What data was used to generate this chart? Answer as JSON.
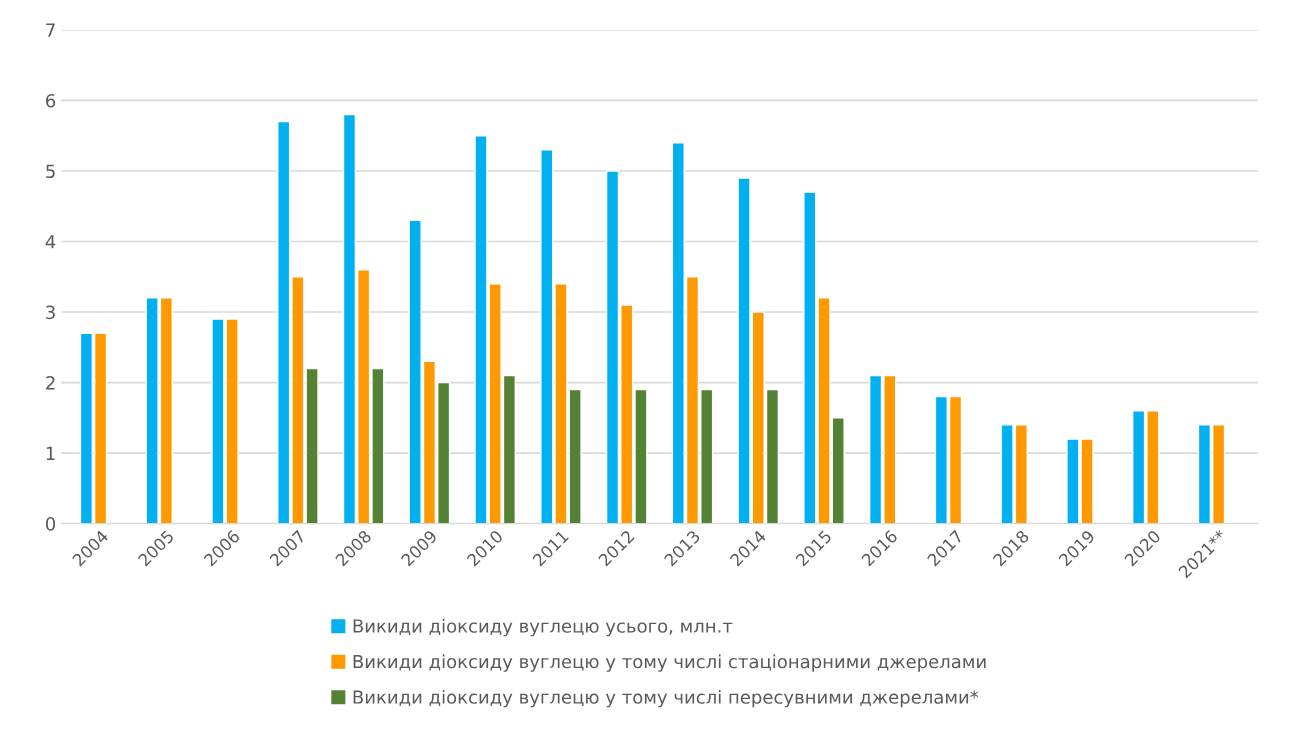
{
  "chart_data": {
    "type": "bar",
    "categories": [
      "2004",
      "2005",
      "2006",
      "2007",
      "2008",
      "2009",
      "2010",
      "2011",
      "2012",
      "2013",
      "2014",
      "2015",
      "2016",
      "2017",
      "2018",
      "2019",
      "2020",
      "2021**"
    ],
    "series": [
      {
        "name": "Викиди діоксиду вуглецю усього, млн.т",
        "color": "#00b0f0",
        "values": [
          2.7,
          3.2,
          2.9,
          5.7,
          5.8,
          4.3,
          5.5,
          5.3,
          5.0,
          5.4,
          4.9,
          4.7,
          2.1,
          1.8,
          1.4,
          1.2,
          1.6,
          1.4
        ]
      },
      {
        "name": "Викиди діоксиду вуглецю у тому числі стаціонарними джерелами",
        "color": "#ff9900",
        "values": [
          2.7,
          3.2,
          2.9,
          3.5,
          3.6,
          2.3,
          3.4,
          3.4,
          3.1,
          3.5,
          3.0,
          3.2,
          2.1,
          1.8,
          1.4,
          1.2,
          1.6,
          1.4
        ]
      },
      {
        "name": "Викиди діоксиду вуглецю у тому числі пересувними джерелами*",
        "color": "#548235",
        "values": [
          null,
          null,
          null,
          2.2,
          2.2,
          2.0,
          2.1,
          1.9,
          1.9,
          1.9,
          1.9,
          1.5,
          null,
          null,
          null,
          null,
          null,
          null
        ]
      }
    ],
    "ylim": [
      0,
      7
    ],
    "yticks": [
      0,
      1,
      2,
      3,
      4,
      5,
      6,
      7
    ],
    "grid": "y",
    "legend": "bottom"
  }
}
